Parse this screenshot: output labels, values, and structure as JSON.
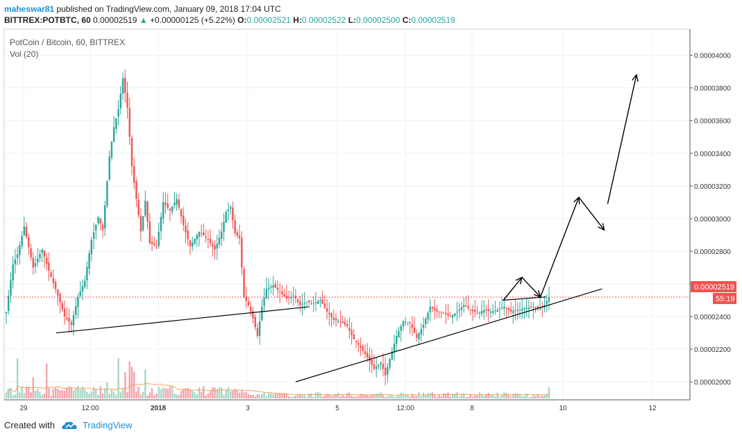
{
  "header": {
    "publisher": "maheswar81",
    "published_text": "published on TradingView.com, January 09, 2018 17:04 UTC",
    "symbol_line": "BITTREX:POTBTC, 60",
    "last_price": "0.00002519",
    "change": "+0.00000125 (+5.22%)",
    "open_label": "O:",
    "open": "0.00002521",
    "high_label": "H:",
    "high": "0.00002522",
    "low_label": "L:",
    "low": "0.00002500",
    "close_label": "C:",
    "close": "0.00002519"
  },
  "legend": {
    "pair": "PotCoin / Bitcoin, 60, BITTREX",
    "volume": "Vol (20)"
  },
  "price_tag": "0.00002519",
  "countdown": "55:19",
  "footer": {
    "created_with": "Created with",
    "brand": "TradingView"
  },
  "colors": {
    "up": "#26a69a",
    "down": "#ef5350",
    "vol_up": "#a5d6c4",
    "vol_down": "#f2a3aa",
    "ma": "#f7a35c",
    "price_line": "#ef5350",
    "accent": "#1f8fd6"
  },
  "chart_data": {
    "type": "candlestick",
    "title": "PotCoin / Bitcoin, 60, BITTREX",
    "xlabel": "",
    "ylabel": "",
    "x_ticks": [
      "29",
      "12:00",
      "2018",
      "3",
      "5",
      "12:00",
      "8",
      "10",
      "12"
    ],
    "y_ticks": [
      "0.00004000",
      "0.00003800",
      "0.00003600",
      "0.00003400",
      "0.00003200",
      "0.00003000",
      "0.00002800",
      "0.00002600",
      "0.00002400",
      "0.00002200",
      "0.00002000"
    ],
    "ylim": [
      1.89e-05,
      4.16e-05
    ],
    "last_price": 2.519e-05,
    "anchors": [
      [
        0,
        2.43e-05
      ],
      [
        3,
        2.72e-05
      ],
      [
        5,
        2.78e-05
      ],
      [
        8,
        2.95e-05
      ],
      [
        12,
        2.7e-05
      ],
      [
        16,
        2.81e-05
      ],
      [
        19,
        2.68e-05
      ],
      [
        23,
        2.53e-05
      ],
      [
        26,
        2.4e-05
      ],
      [
        29,
        2.35e-05
      ],
      [
        32,
        2.52e-05
      ],
      [
        35,
        2.62e-05
      ],
      [
        38,
        2.87e-05
      ],
      [
        41,
        3.01e-05
      ],
      [
        43,
        2.93e-05
      ],
      [
        46,
        3.38e-05
      ],
      [
        48,
        3.56e-05
      ],
      [
        50,
        3.67e-05
      ],
      [
        52,
        3.86e-05
      ],
      [
        54,
        3.68e-05
      ],
      [
        56,
        3.32e-05
      ],
      [
        58,
        3.12e-05
      ],
      [
        60,
        2.92e-05
      ],
      [
        62,
        3.11e-05
      ],
      [
        64,
        2.85e-05
      ],
      [
        67,
        2.83e-05
      ],
      [
        70,
        3.1e-05
      ],
      [
        73,
        3.05e-05
      ],
      [
        76,
        3.12e-05
      ],
      [
        79,
        2.96e-05
      ],
      [
        82,
        2.83e-05
      ],
      [
        86,
        2.92e-05
      ],
      [
        90,
        2.87e-05
      ],
      [
        93,
        2.81e-05
      ],
      [
        96,
        2.92e-05
      ],
      [
        98,
        3.04e-05
      ],
      [
        100,
        3.07e-05
      ],
      [
        102,
        2.91e-05
      ],
      [
        104,
        2.88e-05
      ],
      [
        106,
        2.52e-05
      ],
      [
        108,
        2.47e-05
      ],
      [
        110,
        2.39e-05
      ],
      [
        112,
        2.28e-05
      ],
      [
        114,
        2.46e-05
      ],
      [
        116,
        2.57e-05
      ],
      [
        119,
        2.59e-05
      ],
      [
        122,
        2.55e-05
      ],
      [
        125,
        2.51e-05
      ],
      [
        128,
        2.53e-05
      ],
      [
        131,
        2.47e-05
      ],
      [
        134,
        2.49e-05
      ],
      [
        137,
        2.48e-05
      ],
      [
        140,
        2.5e-05
      ],
      [
        143,
        2.43e-05
      ],
      [
        146,
        2.38e-05
      ],
      [
        149,
        2.37e-05
      ],
      [
        152,
        2.34e-05
      ],
      [
        155,
        2.26e-05
      ],
      [
        158,
        2.21e-05
      ],
      [
        161,
        2.15e-05
      ],
      [
        164,
        2.08e-05
      ],
      [
        167,
        2.12e-05
      ],
      [
        169,
        2.04e-05
      ],
      [
        171,
        2.14e-05
      ],
      [
        174,
        2.28e-05
      ],
      [
        177,
        2.37e-05
      ],
      [
        180,
        2.36e-05
      ],
      [
        183,
        2.27e-05
      ],
      [
        186,
        2.35e-05
      ],
      [
        189,
        2.46e-05
      ],
      [
        192,
        2.43e-05
      ],
      [
        195,
        2.42e-05
      ],
      [
        198,
        2.4e-05
      ],
      [
        201,
        2.43e-05
      ],
      [
        204,
        2.47e-05
      ],
      [
        207,
        2.44e-05
      ],
      [
        210,
        2.42e-05
      ],
      [
        213,
        2.44e-05
      ],
      [
        216,
        2.43e-05
      ],
      [
        219,
        2.44e-05
      ],
      [
        222,
        2.46e-05
      ],
      [
        225,
        2.43e-05
      ],
      [
        228,
        2.44e-05
      ],
      [
        231,
        2.45e-05
      ],
      [
        234,
        2.46e-05
      ],
      [
        237,
        2.45e-05
      ],
      [
        240,
        2.47e-05
      ],
      [
        242,
        2.52e-05
      ]
    ],
    "trendlines": [
      {
        "name": "lower-support",
        "from": [
          0.076,
          2.3e-05
        ],
        "to": [
          0.445,
          2.46e-05
        ]
      },
      {
        "name": "rising-support",
        "from": [
          0.425,
          2e-05
        ],
        "to": [
          0.872,
          2.57e-05
        ]
      },
      {
        "name": "upper-resistance",
        "from": [
          0.727,
          2.5e-05
        ],
        "to": [
          0.79,
          2.52e-05
        ]
      }
    ],
    "projection_arrows": [
      {
        "from": [
          0.728,
          2.5e-05
        ],
        "to": [
          0.755,
          2.64e-05
        ]
      },
      {
        "from": [
          0.755,
          2.64e-05
        ],
        "to": [
          0.782,
          2.52e-05
        ]
      },
      {
        "from": [
          0.782,
          2.52e-05
        ],
        "to": [
          0.838,
          3.13e-05
        ]
      },
      {
        "from": [
          0.838,
          3.13e-05
        ],
        "to": [
          0.875,
          2.93e-05
        ]
      },
      {
        "from": [
          0.88,
          3.09e-05
        ],
        "to": [
          0.922,
          3.88e-05
        ]
      }
    ]
  }
}
